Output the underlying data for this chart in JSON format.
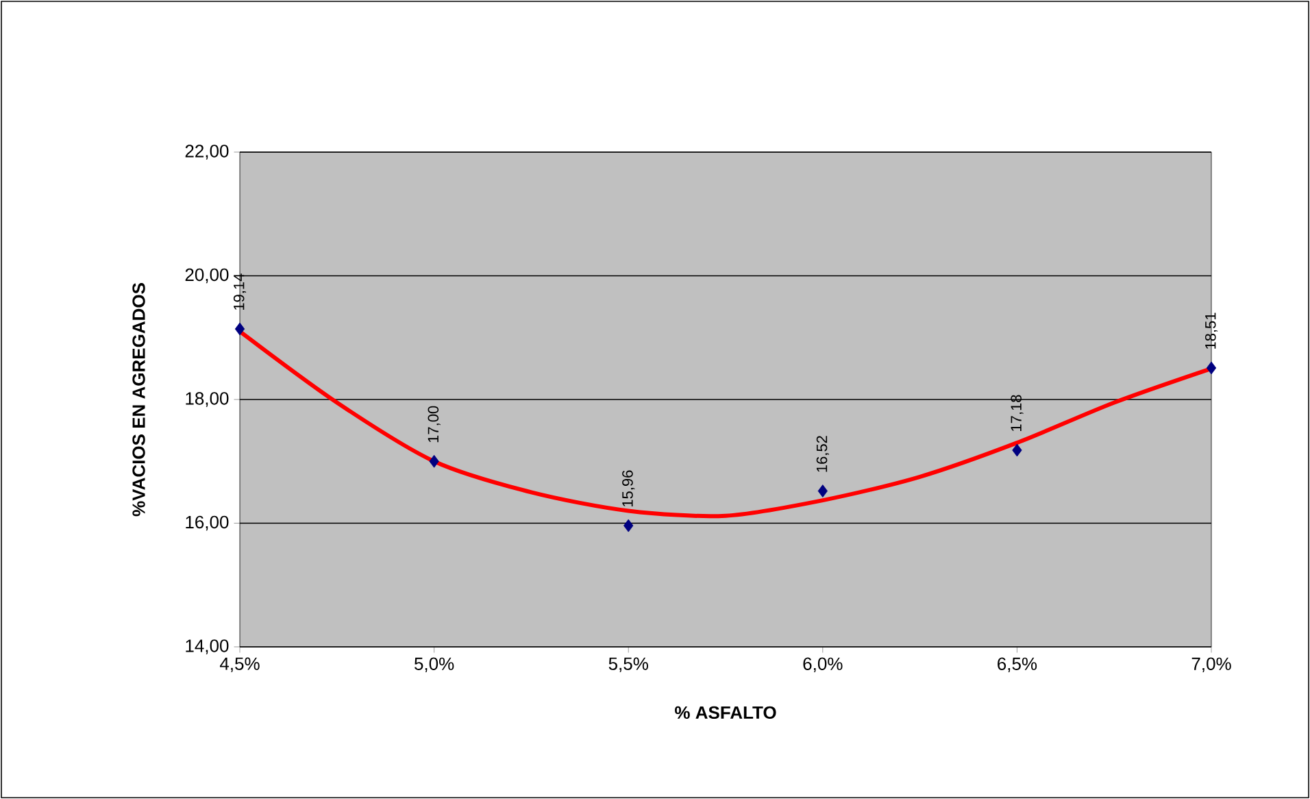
{
  "chart_data": {
    "type": "scatter",
    "xlabel": "% ASFALTO",
    "ylabel": "%VACIOS EN AGREGADOS",
    "x": [
      4.5,
      5.0,
      5.5,
      6.0,
      6.5,
      7.0
    ],
    "series": [
      {
        "color": "#000080",
        "marker": "diamond",
        "values": [
          19.14,
          17.0,
          15.96,
          16.52,
          17.18,
          18.51
        ],
        "value_labels": [
          "19,14",
          "17,00",
          "15,96",
          "16,52",
          "17,18",
          "18,51"
        ]
      },
      {
        "type": "line",
        "color": "#ff0000",
        "marker": "none",
        "x": [
          4.5,
          4.75,
          5.0,
          5.25,
          5.5,
          5.75,
          6.0,
          6.25,
          6.5,
          6.75,
          7.0
        ],
        "values": [
          19.1,
          17.95,
          17.0,
          16.5,
          16.2,
          16.12,
          16.37,
          16.75,
          17.3,
          17.95,
          18.5
        ]
      }
    ],
    "xlim": [
      4.5,
      7.0
    ],
    "xticks": [
      {
        "value": 4.5,
        "label": "4,5%"
      },
      {
        "value": 5.0,
        "label": "5,0%"
      },
      {
        "value": 5.5,
        "label": "5,5%"
      },
      {
        "value": 6.0,
        "label": "6,0%"
      },
      {
        "value": 6.5,
        "label": "6,5%"
      },
      {
        "value": 7.0,
        "label": "7,0%"
      }
    ],
    "ylim": [
      14,
      22
    ],
    "yticks": [
      {
        "value": 14,
        "label": "14,00"
      },
      {
        "value": 16,
        "label": "16,00"
      },
      {
        "value": 18,
        "label": "18,00"
      },
      {
        "value": 20,
        "label": "20,00"
      },
      {
        "value": 22,
        "label": "22,00"
      }
    ],
    "grid": "y"
  }
}
